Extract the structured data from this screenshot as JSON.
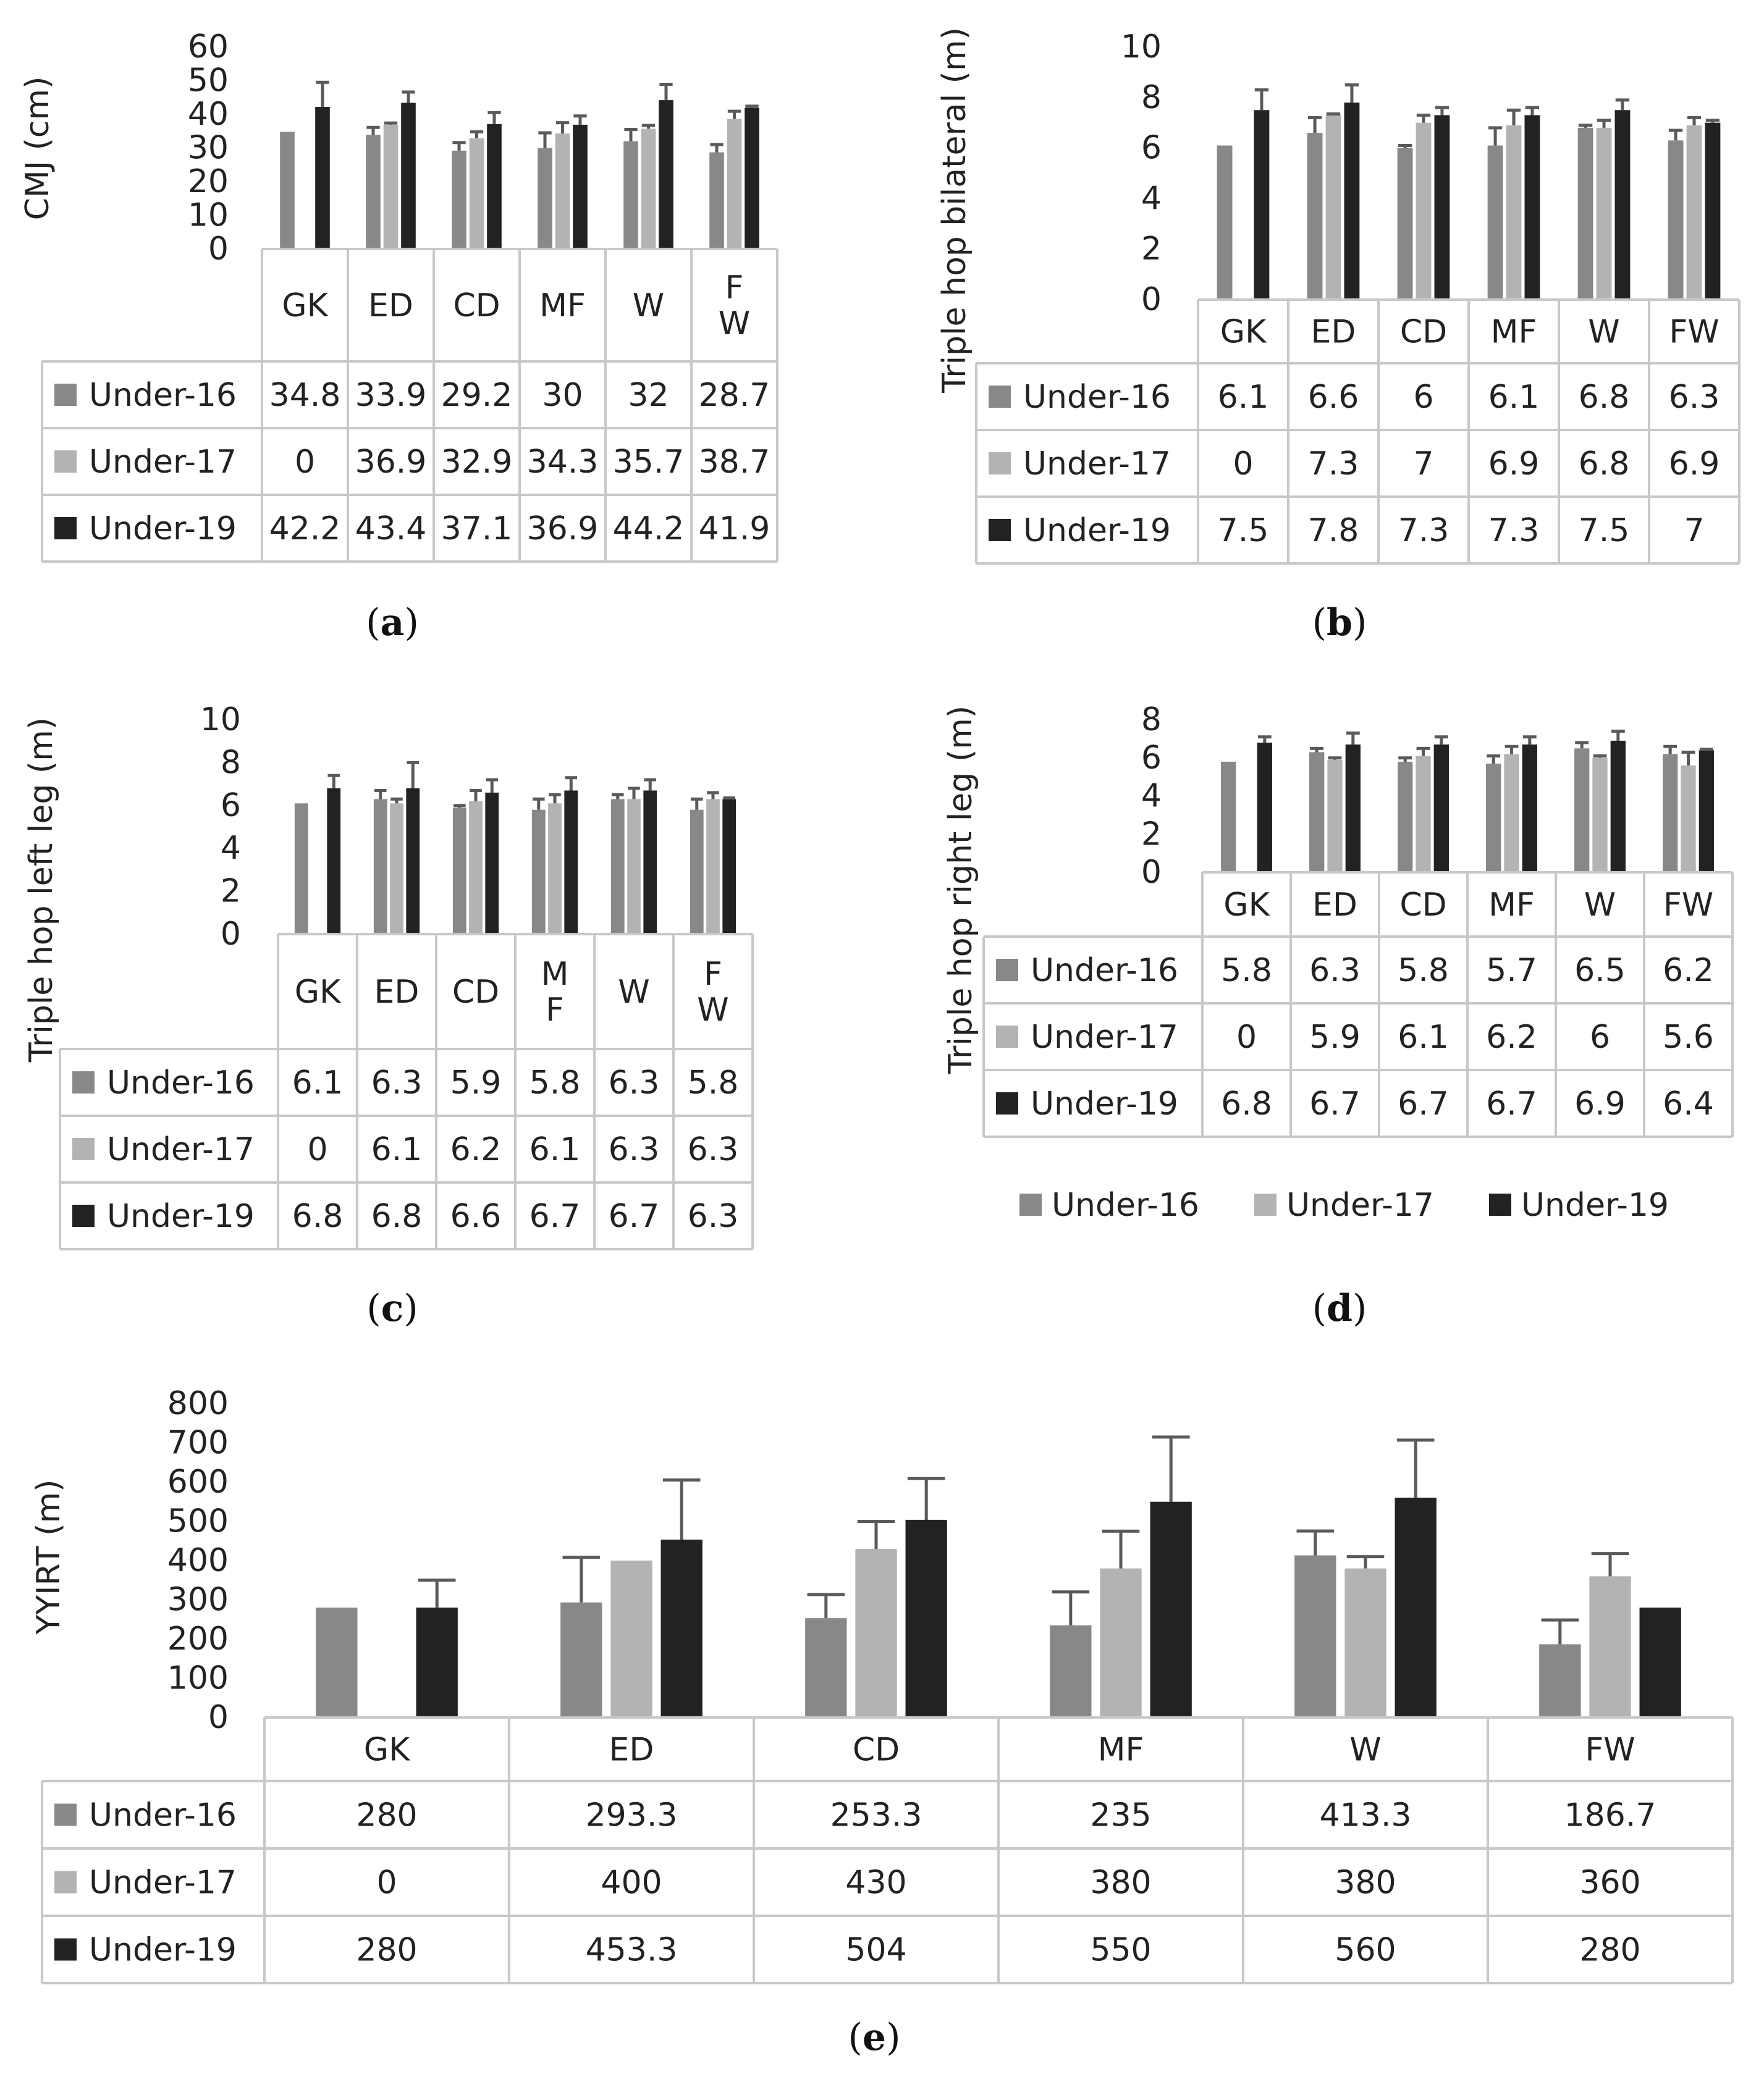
{
  "colors": {
    "u16": "#888888",
    "u17": "#b3b3b3",
    "u19": "#222222",
    "error_bar": "#5a5a5a",
    "grid_border": "#c8c8c8",
    "text": "#222222"
  },
  "series_names": [
    "Under-16",
    "Under-17",
    "Under-19"
  ],
  "chart_data": [
    {
      "type": "bar",
      "panel": "(a)",
      "ylabel": "CMJ (cm)",
      "ylim": [
        0,
        60
      ],
      "yticks": [
        "0",
        "10",
        "20",
        "30",
        "40",
        "50",
        "60"
      ],
      "categories": [
        [
          "GK"
        ],
        [
          "ED"
        ],
        [
          "CD"
        ],
        [
          "MF"
        ],
        [
          "W"
        ],
        [
          "F",
          "W"
        ]
      ],
      "series": [
        {
          "name": "Under-16",
          "values": [
            34.8,
            33.9,
            29.2,
            30,
            32,
            28.7
          ],
          "labels": [
            "34.8",
            "33.9",
            "29.2",
            "30",
            "32",
            "28.7"
          ],
          "err": [
            0,
            2.2,
            2.4,
            4.5,
            3.5,
            2.3
          ]
        },
        {
          "name": "Under-17",
          "values": [
            0,
            36.9,
            32.9,
            34.3,
            35.7,
            38.7
          ],
          "labels": [
            "0",
            "36.9",
            "32.9",
            "34.3",
            "35.7",
            "38.7"
          ],
          "err": [
            0,
            0.5,
            1.9,
            3.2,
            1.0,
            2.2
          ]
        },
        {
          "name": "Under-19",
          "values": [
            42.2,
            43.4,
            37.1,
            36.9,
            44.2,
            41.9
          ],
          "labels": [
            "42.2",
            "43.4",
            "37.1",
            "36.9",
            "44.2",
            "41.9"
          ],
          "err": [
            7.3,
            3.2,
            3.4,
            2.6,
            4.7,
            0.5
          ]
        }
      ]
    },
    {
      "type": "bar",
      "panel": "(b)",
      "ylabel": "Triple hop bilateral (m)",
      "ylim": [
        0,
        10
      ],
      "yticks": [
        "0",
        "2",
        "4",
        "6",
        "8",
        "10"
      ],
      "categories": [
        [
          "GK"
        ],
        [
          "ED"
        ],
        [
          "CD"
        ],
        [
          "MF"
        ],
        [
          "W"
        ],
        [
          "FW"
        ]
      ],
      "series": [
        {
          "name": "Under-16",
          "values": [
            6.1,
            6.6,
            6,
            6.1,
            6.8,
            6.3
          ],
          "labels": [
            "6.1",
            "6.6",
            "6",
            "6.1",
            "6.8",
            "6.3"
          ],
          "err": [
            0,
            0.6,
            0.1,
            0.7,
            0.1,
            0.4
          ]
        },
        {
          "name": "Under-17",
          "values": [
            0,
            7.3,
            7,
            6.9,
            6.8,
            6.9
          ],
          "labels": [
            "0",
            "7.3",
            "7",
            "6.9",
            "6.8",
            "6.9"
          ],
          "err": [
            0,
            0.05,
            0.3,
            0.6,
            0.3,
            0.3
          ]
        },
        {
          "name": "Under-19",
          "values": [
            7.5,
            7.8,
            7.3,
            7.3,
            7.5,
            7
          ],
          "labels": [
            "7.5",
            "7.8",
            "7.3",
            "7.3",
            "7.5",
            "7"
          ],
          "err": [
            0.8,
            0.7,
            0.3,
            0.3,
            0.4,
            0.1
          ]
        }
      ]
    },
    {
      "type": "bar",
      "panel": "(c)",
      "ylabel": "Triple hop left leg (m)",
      "ylim": [
        0,
        10
      ],
      "yticks": [
        "0",
        "2",
        "4",
        "6",
        "8",
        "10"
      ],
      "categories": [
        [
          "GK"
        ],
        [
          "ED"
        ],
        [
          "CD"
        ],
        [
          "M",
          "F"
        ],
        [
          "W"
        ],
        [
          "F",
          "W"
        ]
      ],
      "series": [
        {
          "name": "Under-16",
          "values": [
            6.1,
            6.3,
            5.9,
            5.8,
            6.3,
            5.8
          ],
          "labels": [
            "6.1",
            "6.3",
            "5.9",
            "5.8",
            "6.3",
            "5.8"
          ],
          "err": [
            0,
            0.4,
            0.1,
            0.5,
            0.2,
            0.5
          ]
        },
        {
          "name": "Under-17",
          "values": [
            0,
            6.1,
            6.2,
            6.1,
            6.3,
            6.3
          ],
          "labels": [
            "0",
            "6.1",
            "6.2",
            "6.1",
            "6.3",
            "6.3"
          ],
          "err": [
            0,
            0.2,
            0.5,
            0.4,
            0.5,
            0.3
          ]
        },
        {
          "name": "Under-19",
          "values": [
            6.8,
            6.8,
            6.6,
            6.7,
            6.7,
            6.3
          ],
          "labels": [
            "6.8",
            "6.8",
            "6.6",
            "6.7",
            "6.7",
            "6.3"
          ],
          "err": [
            0.6,
            1.2,
            0.6,
            0.6,
            0.5,
            0.05
          ]
        }
      ]
    },
    {
      "type": "bar",
      "panel": "(d)",
      "ylabel": "Triple hop right leg (m)",
      "ylim": [
        0,
        8
      ],
      "yticks": [
        "0",
        "2",
        "4",
        "6",
        "8"
      ],
      "categories": [
        [
          "GK"
        ],
        [
          "ED"
        ],
        [
          "CD"
        ],
        [
          "MF"
        ],
        [
          "W"
        ],
        [
          "FW"
        ]
      ],
      "series": [
        {
          "name": "Under-16",
          "values": [
            5.8,
            6.3,
            5.8,
            5.7,
            6.5,
            6.2
          ],
          "labels": [
            "5.8",
            "6.3",
            "5.8",
            "5.7",
            "6.5",
            "6.2"
          ],
          "err": [
            0,
            0.2,
            0.2,
            0.4,
            0.3,
            0.4
          ]
        },
        {
          "name": "Under-17",
          "values": [
            0,
            5.9,
            6.1,
            6.2,
            6,
            5.6
          ],
          "labels": [
            "0",
            "5.9",
            "6.1",
            "6.2",
            "6",
            "5.6"
          ],
          "err": [
            0,
            0.1,
            0.4,
            0.4,
            0.1,
            0.7
          ]
        },
        {
          "name": "Under-19",
          "values": [
            6.8,
            6.7,
            6.7,
            6.7,
            6.9,
            6.4
          ],
          "labels": [
            "6.8",
            "6.7",
            "6.7",
            "6.7",
            "6.9",
            "6.4"
          ],
          "err": [
            0.3,
            0.6,
            0.4,
            0.4,
            0.5,
            0.05
          ]
        }
      ]
    },
    {
      "type": "bar",
      "panel": "(e)",
      "ylabel": "YYIRT (m)",
      "ylim": [
        0,
        800
      ],
      "yticks": [
        "0",
        "100",
        "200",
        "300",
        "400",
        "500",
        "600",
        "700",
        "800"
      ],
      "categories": [
        [
          "GK"
        ],
        [
          "ED"
        ],
        [
          "CD"
        ],
        [
          "MF"
        ],
        [
          "W"
        ],
        [
          "FW"
        ]
      ],
      "series": [
        {
          "name": "Under-16",
          "values": [
            280,
            293.3,
            253.3,
            235,
            413.3,
            186.7
          ],
          "labels": [
            "280",
            "293.3",
            "253.3",
            "235",
            "413.3",
            "186.7"
          ],
          "err": [
            0,
            115,
            60,
            85,
            62,
            62
          ]
        },
        {
          "name": "Under-17",
          "values": [
            0,
            400,
            430,
            380,
            380,
            360
          ],
          "labels": [
            "0",
            "400",
            "430",
            "380",
            "380",
            "360"
          ],
          "err": [
            0,
            0,
            70,
            95,
            30,
            58
          ]
        },
        {
          "name": "Under-19",
          "values": [
            280,
            453.3,
            504,
            550,
            560,
            280
          ],
          "labels": [
            "280",
            "453.3",
            "504",
            "550",
            "560",
            "280"
          ],
          "err": [
            70,
            152,
            105,
            165,
            147,
            0
          ]
        }
      ]
    }
  ],
  "legend_d": [
    "Under-16",
    "Under-17",
    "Under-19"
  ]
}
